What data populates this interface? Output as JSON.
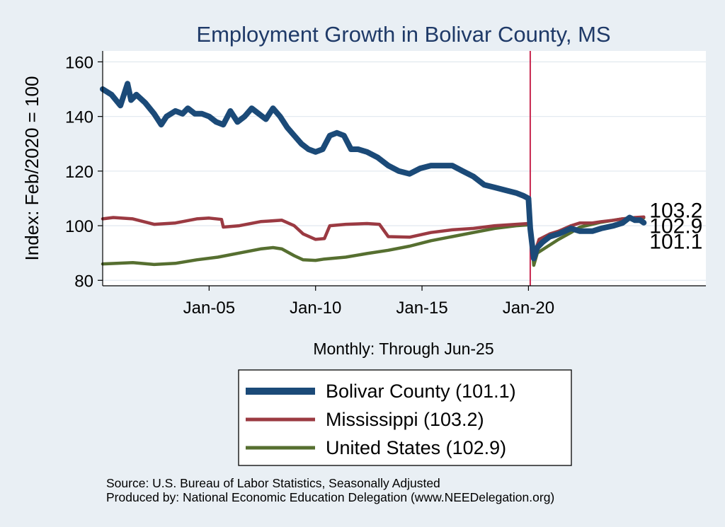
{
  "chart_data": {
    "type": "line",
    "title": "Employment Growth in Bolivar  County, MS",
    "ylabel": "Index: Feb/2020 = 100",
    "xlabel": "Monthly: Through Jun-25",
    "ylim": [
      78,
      164
    ],
    "xlim": [
      "2000-01",
      "2028-05"
    ],
    "yticks": [
      80,
      100,
      120,
      140,
      160
    ],
    "xticks": [
      {
        "label": "Jan-05",
        "date": "2005-01"
      },
      {
        "label": "Jan-10",
        "date": "2010-01"
      },
      {
        "label": "Jan-15",
        "date": "2015-01"
      },
      {
        "label": "Jan-20",
        "date": "2020-01"
      }
    ],
    "vline": {
      "date": "2020-02",
      "color": "#c8264e"
    },
    "grid": true,
    "legend_position": "bottom",
    "series": [
      {
        "name": "Bolivar  County (101.1)",
        "color": "#1b4a78",
        "end_label": "101.1",
        "points": [
          [
            "2000-01",
            150
          ],
          [
            "2000-06",
            148
          ],
          [
            "2000-11",
            144
          ],
          [
            "2001-03",
            152
          ],
          [
            "2001-05",
            146
          ],
          [
            "2001-08",
            148
          ],
          [
            "2002-01",
            145
          ],
          [
            "2002-06",
            141
          ],
          [
            "2002-10",
            137
          ],
          [
            "2003-01",
            140
          ],
          [
            "2003-06",
            142
          ],
          [
            "2003-10",
            141
          ],
          [
            "2004-01",
            143
          ],
          [
            "2004-05",
            141
          ],
          [
            "2004-09",
            141
          ],
          [
            "2005-01",
            140
          ],
          [
            "2005-05",
            138
          ],
          [
            "2005-09",
            137
          ],
          [
            "2006-01",
            142
          ],
          [
            "2006-05",
            138
          ],
          [
            "2006-09",
            140
          ],
          [
            "2007-01",
            143
          ],
          [
            "2007-05",
            141
          ],
          [
            "2007-09",
            139
          ],
          [
            "2008-01",
            143
          ],
          [
            "2008-05",
            140
          ],
          [
            "2008-09",
            136
          ],
          [
            "2009-01",
            133
          ],
          [
            "2009-05",
            130
          ],
          [
            "2009-09",
            128
          ],
          [
            "2010-01",
            127
          ],
          [
            "2010-05",
            128
          ],
          [
            "2010-09",
            133
          ],
          [
            "2011-01",
            134
          ],
          [
            "2011-05",
            133
          ],
          [
            "2011-09",
            128
          ],
          [
            "2012-01",
            128
          ],
          [
            "2012-06",
            127
          ],
          [
            "2012-12",
            125
          ],
          [
            "2013-06",
            122
          ],
          [
            "2013-12",
            120
          ],
          [
            "2014-06",
            119
          ],
          [
            "2014-12",
            121
          ],
          [
            "2015-06",
            122
          ],
          [
            "2015-12",
            122
          ],
          [
            "2016-06",
            122
          ],
          [
            "2016-12",
            120
          ],
          [
            "2017-06",
            118
          ],
          [
            "2017-12",
            115
          ],
          [
            "2018-06",
            114
          ],
          [
            "2018-12",
            113
          ],
          [
            "2019-06",
            112
          ],
          [
            "2019-10",
            111
          ],
          [
            "2020-01",
            110
          ],
          [
            "2020-02",
            99
          ],
          [
            "2020-04",
            88
          ],
          [
            "2020-06",
            92
          ],
          [
            "2020-09",
            94
          ],
          [
            "2021-01",
            96
          ],
          [
            "2021-06",
            97
          ],
          [
            "2022-01",
            99
          ],
          [
            "2022-06",
            98
          ],
          [
            "2023-01",
            98
          ],
          [
            "2023-06",
            99
          ],
          [
            "2024-01",
            100
          ],
          [
            "2024-06",
            101
          ],
          [
            "2024-10",
            103
          ],
          [
            "2025-01",
            102
          ],
          [
            "2025-04",
            102
          ],
          [
            "2025-06",
            101.1
          ]
        ]
      },
      {
        "name": "Mississippi (103.2)",
        "color": "#9b3a42",
        "end_label": "103.2",
        "points": [
          [
            "2000-01",
            102.5
          ],
          [
            "2000-07",
            103
          ],
          [
            "2001-06",
            102.5
          ],
          [
            "2002-06",
            100.5
          ],
          [
            "2003-06",
            101
          ],
          [
            "2004-06",
            102.5
          ],
          [
            "2005-01",
            102.8
          ],
          [
            "2005-08",
            102.3
          ],
          [
            "2005-09",
            99.5
          ],
          [
            "2006-06",
            100
          ],
          [
            "2007-06",
            101.5
          ],
          [
            "2008-06",
            102
          ],
          [
            "2009-01",
            100
          ],
          [
            "2009-06",
            97
          ],
          [
            "2010-01",
            95
          ],
          [
            "2010-06",
            95.3
          ],
          [
            "2010-09",
            100
          ],
          [
            "2011-06",
            100.5
          ],
          [
            "2012-06",
            100.8
          ],
          [
            "2013-01",
            100.5
          ],
          [
            "2013-06",
            96
          ],
          [
            "2014-06",
            95.8
          ],
          [
            "2015-06",
            97.5
          ],
          [
            "2016-06",
            98.5
          ],
          [
            "2017-06",
            99
          ],
          [
            "2018-06",
            100
          ],
          [
            "2019-06",
            100.5
          ],
          [
            "2020-01",
            100.8
          ],
          [
            "2020-02",
            100.5
          ],
          [
            "2020-04",
            89
          ],
          [
            "2020-07",
            95
          ],
          [
            "2021-01",
            97
          ],
          [
            "2021-06",
            98
          ],
          [
            "2022-01",
            100
          ],
          [
            "2022-06",
            101
          ],
          [
            "2023-01",
            101
          ],
          [
            "2023-06",
            101.5
          ],
          [
            "2024-01",
            102
          ],
          [
            "2024-06",
            102.5
          ],
          [
            "2025-01",
            103
          ],
          [
            "2025-06",
            103.2
          ]
        ]
      },
      {
        "name": "United States (102.9)",
        "color": "#566f30",
        "end_label": "102.9",
        "points": [
          [
            "2000-01",
            86
          ],
          [
            "2001-06",
            86.5
          ],
          [
            "2002-06",
            85.8
          ],
          [
            "2003-06",
            86.2
          ],
          [
            "2004-06",
            87.5
          ],
          [
            "2005-06",
            88.5
          ],
          [
            "2006-06",
            90
          ],
          [
            "2007-06",
            91.5
          ],
          [
            "2008-01",
            92
          ],
          [
            "2008-06",
            91.5
          ],
          [
            "2009-01",
            89
          ],
          [
            "2009-06",
            87.5
          ],
          [
            "2010-01",
            87.3
          ],
          [
            "2010-06",
            87.8
          ],
          [
            "2011-06",
            88.5
          ],
          [
            "2012-06",
            89.8
          ],
          [
            "2013-06",
            91
          ],
          [
            "2014-06",
            92.5
          ],
          [
            "2015-06",
            94.5
          ],
          [
            "2016-06",
            96
          ],
          [
            "2017-06",
            97.5
          ],
          [
            "2018-06",
            99
          ],
          [
            "2019-06",
            100
          ],
          [
            "2020-01",
            100.3
          ],
          [
            "2020-02",
            100
          ],
          [
            "2020-04",
            85.5
          ],
          [
            "2020-06",
            90
          ],
          [
            "2020-12",
            92.5
          ],
          [
            "2021-06",
            95
          ],
          [
            "2022-01",
            97.5
          ],
          [
            "2022-06",
            99.5
          ],
          [
            "2023-01",
            100.5
          ],
          [
            "2023-06",
            101.3
          ],
          [
            "2024-01",
            102
          ],
          [
            "2024-06",
            102.5
          ],
          [
            "2025-01",
            102.8
          ],
          [
            "2025-06",
            102.9
          ]
        ]
      }
    ]
  },
  "source": {
    "line1": "Source: U.S. Bureau of Labor Statistics, Seasonally Adjusted",
    "line2": "Produced by: National Economic Education Delegation (www.NEEDelegation.org)"
  }
}
